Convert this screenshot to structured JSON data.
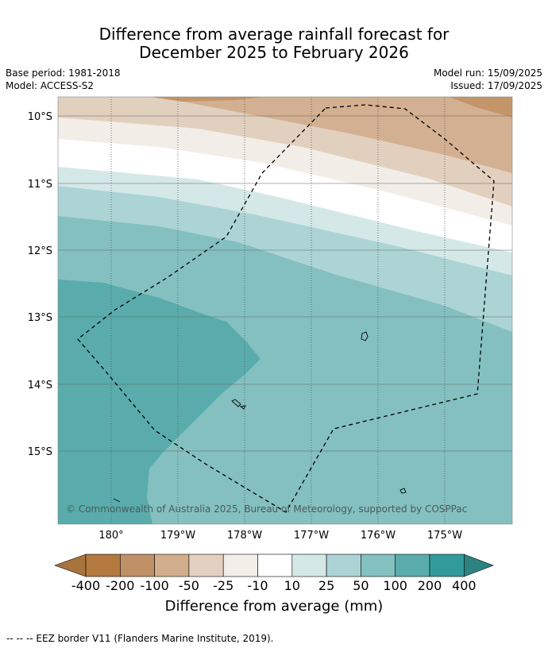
{
  "title_line1": "Difference from average rainfall forecast for",
  "title_line2": "December 2025 to February 2026",
  "meta": {
    "base_period": "Base period: 1981-2018",
    "model": "Model: ACCESS-S2",
    "model_run": "Model run: 15/09/2025",
    "issued": "Issued: 17/09/2025"
  },
  "lat_labels": [
    "10°S",
    "11°S",
    "12°S",
    "13°S",
    "14°S",
    "15°S"
  ],
  "lon_labels": [
    "180°",
    "179°W",
    "178°W",
    "177°W",
    "176°W",
    "175°W"
  ],
  "copyright": "© Commonwealth of Australia 2025, Bureau of Meteorology, supported by COSPPac",
  "colorbar": {
    "labels": [
      "-400",
      "-200",
      "-100",
      "-50",
      "-25",
      "-10",
      "10",
      "25",
      "50",
      "100",
      "200",
      "400"
    ],
    "colors": [
      "#a8733c",
      "#b3793f",
      "#c09066",
      "#d2ae8c",
      "#e3d0c0",
      "#f3eee8",
      "#ffffff",
      "#d5e8e8",
      "#acd4d4",
      "#84c0c0",
      "#5aacac",
      "#319a9a",
      "#2d8282"
    ],
    "title": "Difference from average (mm)"
  },
  "footnote": "--  --  -- EEZ border V11 (Flanders Marine Institute, 2019).",
  "map_colors": {
    "brown_dark": "#c4956a",
    "brown_mid": "#d3b091",
    "tan": "#e2d0bf",
    "cream": "#f2ede7",
    "white": "#ffffff",
    "teal_pale": "#d5e8e8",
    "teal_light": "#acd4d4",
    "teal_mid": "#84c0c0",
    "teal_dark": "#5aacac"
  }
}
